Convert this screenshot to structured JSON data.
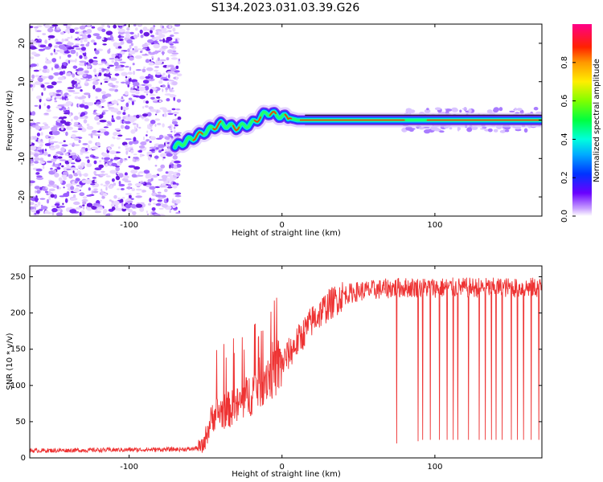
{
  "figure_title": "S134.2023.031.03.39.G26",
  "chart_data": [
    {
      "type": "heatmap",
      "xlabel": "Height of straight line (km)",
      "ylabel": "Frequency (Hz)",
      "xlim": [
        -165,
        170
      ],
      "ylim": [
        -25,
        25
      ],
      "xticks": [
        -100,
        0,
        100
      ],
      "yticks": [
        -20,
        -10,
        0,
        10,
        20
      ],
      "colorbar": {
        "label": "Normalized spectral amplitude",
        "range": [
          0,
          1
        ],
        "ticks": [
          0.0,
          0.2,
          0.4,
          0.6,
          0.8
        ],
        "colormap": "rainbow (violet → blue → cyan → green → yellow → orange → red → magenta)"
      },
      "features": {
        "noise_region_x": [
          -165,
          -67
        ],
        "signal_track": [
          {
            "x": -70,
            "y": -7
          },
          {
            "x": -60,
            "y": -5
          },
          {
            "x": -50,
            "y": -3
          },
          {
            "x": -40,
            "y": -1
          },
          {
            "x": -30,
            "y": -2
          },
          {
            "x": -20,
            "y": -1
          },
          {
            "x": -10,
            "y": 2
          },
          {
            "x": 0,
            "y": 1
          },
          {
            "x": 10,
            "y": 0
          },
          {
            "x": 50,
            "y": 0
          },
          {
            "x": 100,
            "y": 0
          },
          {
            "x": 170,
            "y": 0
          }
        ]
      }
    },
    {
      "type": "line",
      "xlabel": "Height of straight line (km)",
      "ylabel": "SNR (10 * v/v)",
      "xlim": [
        -165,
        170
      ],
      "ylim": [
        0,
        265
      ],
      "xticks": [
        -100,
        0,
        100
      ],
      "yticks": [
        0,
        50,
        100,
        150,
        200,
        250
      ],
      "series": [
        {
          "color": "#ee3333",
          "trend": [
            {
              "x": -165,
              "y": 10
            },
            {
              "x": -60,
              "y": 12
            },
            {
              "x": -52,
              "y": 15
            },
            {
              "x": -45,
              "y": 60
            },
            {
              "x": -30,
              "y": 70
            },
            {
              "x": -20,
              "y": 90
            },
            {
              "x": -10,
              "y": 115
            },
            {
              "x": 0,
              "y": 130
            },
            {
              "x": 10,
              "y": 160
            },
            {
              "x": 20,
              "y": 190
            },
            {
              "x": 30,
              "y": 210
            },
            {
              "x": 40,
              "y": 225
            },
            {
              "x": 50,
              "y": 230
            },
            {
              "x": 60,
              "y": 232
            },
            {
              "x": 75,
              "y": 235
            },
            {
              "x": 100,
              "y": 235
            },
            {
              "x": 170,
              "y": 235
            }
          ],
          "dropouts": [
            {
              "x": 75,
              "y": 20
            },
            {
              "x": 89,
              "y": 23
            },
            {
              "x": 92,
              "y": 25
            },
            {
              "x": 97,
              "y": 25
            },
            {
              "x": 103,
              "y": 25
            },
            {
              "x": 108,
              "y": 25
            },
            {
              "x": 112,
              "y": 25
            },
            {
              "x": 115,
              "y": 25
            },
            {
              "x": 122,
              "y": 25
            },
            {
              "x": 129,
              "y": 25
            },
            {
              "x": 133,
              "y": 25
            },
            {
              "x": 137,
              "y": 25
            },
            {
              "x": 140,
              "y": 25
            },
            {
              "x": 144,
              "y": 25
            },
            {
              "x": 150,
              "y": 25
            },
            {
              "x": 154,
              "y": 25
            },
            {
              "x": 158,
              "y": 25
            },
            {
              "x": 163,
              "y": 25
            },
            {
              "x": 168,
              "y": 25
            }
          ]
        }
      ]
    }
  ]
}
